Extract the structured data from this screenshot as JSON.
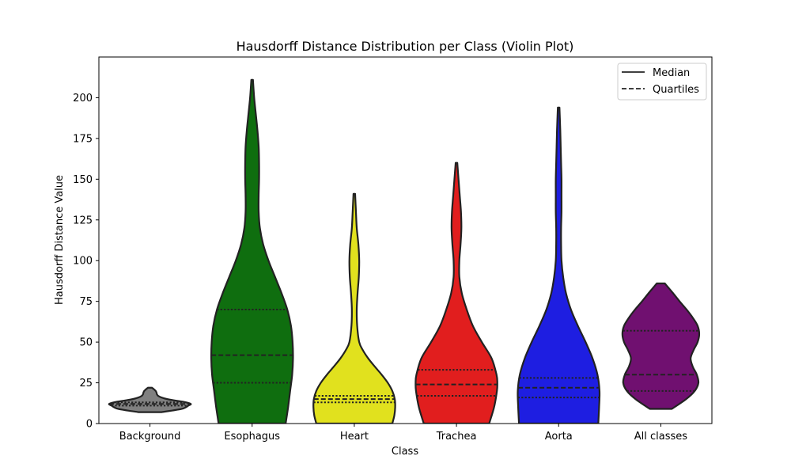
{
  "chart_data": {
    "type": "violin",
    "title": "Hausdorff Distance Distribution per Class (Violin Plot)",
    "xlabel": "Class",
    "ylabel": "Hausdorff Distance Value",
    "ylim": [
      0,
      225
    ],
    "yticks": [
      0,
      25,
      50,
      75,
      100,
      125,
      150,
      175,
      200
    ],
    "legend": {
      "placement": "top-right",
      "entries": [
        {
          "label": "Median",
          "style": "solid"
        },
        {
          "label": "Quartiles",
          "style": "dashed"
        }
      ]
    },
    "categories": [
      "Background",
      "Esophagus",
      "Heart",
      "Trachea",
      "Aorta",
      "All classes"
    ],
    "series": [
      {
        "category": "Background",
        "color": "#808080",
        "min": 7,
        "max": 22,
        "q1": 11,
        "median": 12,
        "q3": 13,
        "density": [
          [
            7,
            0.28
          ],
          [
            8,
            0.55
          ],
          [
            9,
            0.78
          ],
          [
            10,
            0.88
          ],
          [
            11,
            0.94
          ],
          [
            12,
            1.0
          ],
          [
            13,
            0.88
          ],
          [
            14,
            0.65
          ],
          [
            15,
            0.42
          ],
          [
            16,
            0.28
          ],
          [
            17,
            0.2
          ],
          [
            18,
            0.17
          ],
          [
            19,
            0.16
          ],
          [
            20,
            0.14
          ],
          [
            21,
            0.1
          ],
          [
            22,
            0.05
          ]
        ]
      },
      {
        "category": "Esophagus",
        "color": "#0f6e0f",
        "min": 0,
        "max": 211,
        "q1": 25,
        "median": 42,
        "q3": 70,
        "density": [
          [
            0,
            0.82
          ],
          [
            10,
            0.88
          ],
          [
            20,
            0.93
          ],
          [
            30,
            0.98
          ],
          [
            40,
            1.0
          ],
          [
            50,
            0.99
          ],
          [
            60,
            0.95
          ],
          [
            70,
            0.86
          ],
          [
            80,
            0.72
          ],
          [
            90,
            0.56
          ],
          [
            100,
            0.4
          ],
          [
            110,
            0.27
          ],
          [
            120,
            0.19
          ],
          [
            130,
            0.16
          ],
          [
            140,
            0.16
          ],
          [
            150,
            0.17
          ],
          [
            160,
            0.17
          ],
          [
            170,
            0.16
          ],
          [
            180,
            0.13
          ],
          [
            190,
            0.09
          ],
          [
            200,
            0.05
          ],
          [
            211,
            0.02
          ]
        ]
      },
      {
        "category": "Heart",
        "color": "#e1e11e",
        "min": 0,
        "max": 141,
        "q1": 13,
        "median": 15,
        "q3": 17,
        "density": [
          [
            0,
            0.93
          ],
          [
            5,
            0.98
          ],
          [
            10,
            1.0
          ],
          [
            15,
            0.99
          ],
          [
            20,
            0.93
          ],
          [
            25,
            0.82
          ],
          [
            30,
            0.67
          ],
          [
            35,
            0.5
          ],
          [
            40,
            0.34
          ],
          [
            45,
            0.21
          ],
          [
            50,
            0.12
          ],
          [
            60,
            0.07
          ],
          [
            70,
            0.06
          ],
          [
            80,
            0.08
          ],
          [
            90,
            0.11
          ],
          [
            100,
            0.12
          ],
          [
            110,
            0.1
          ],
          [
            120,
            0.06
          ],
          [
            130,
            0.04
          ],
          [
            141,
            0.02
          ]
        ]
      },
      {
        "category": "Trachea",
        "color": "#e11e1e",
        "min": 0,
        "max": 160,
        "q1": 17,
        "median": 24,
        "q3": 33,
        "density": [
          [
            0,
            0.8
          ],
          [
            10,
            0.92
          ],
          [
            20,
            0.99
          ],
          [
            25,
            1.0
          ],
          [
            30,
            0.98
          ],
          [
            40,
            0.86
          ],
          [
            50,
            0.62
          ],
          [
            60,
            0.4
          ],
          [
            70,
            0.25
          ],
          [
            80,
            0.13
          ],
          [
            90,
            0.07
          ],
          [
            100,
            0.07
          ],
          [
            110,
            0.1
          ],
          [
            120,
            0.12
          ],
          [
            130,
            0.11
          ],
          [
            140,
            0.08
          ],
          [
            150,
            0.05
          ],
          [
            160,
            0.02
          ]
        ]
      },
      {
        "category": "Aorta",
        "color": "#1e1ee1",
        "min": 0,
        "max": 194,
        "q1": 16,
        "median": 22,
        "q3": 28,
        "density": [
          [
            0,
            0.97
          ],
          [
            10,
            0.99
          ],
          [
            20,
            1.0
          ],
          [
            30,
            0.95
          ],
          [
            40,
            0.83
          ],
          [
            50,
            0.66
          ],
          [
            60,
            0.47
          ],
          [
            70,
            0.3
          ],
          [
            80,
            0.18
          ],
          [
            90,
            0.11
          ],
          [
            100,
            0.07
          ],
          [
            110,
            0.06
          ],
          [
            120,
            0.06
          ],
          [
            130,
            0.07
          ],
          [
            140,
            0.07
          ],
          [
            150,
            0.07
          ],
          [
            160,
            0.06
          ],
          [
            170,
            0.05
          ],
          [
            180,
            0.04
          ],
          [
            194,
            0.02
          ]
        ]
      },
      {
        "category": "All classes",
        "color": "#701070",
        "min": 9,
        "max": 86,
        "q1": 20,
        "median": 30,
        "q3": 57,
        "density": [
          [
            9,
            0.27
          ],
          [
            15,
            0.62
          ],
          [
            20,
            0.83
          ],
          [
            25,
            0.92
          ],
          [
            30,
            0.88
          ],
          [
            35,
            0.78
          ],
          [
            40,
            0.73
          ],
          [
            45,
            0.8
          ],
          [
            50,
            0.9
          ],
          [
            55,
            0.94
          ],
          [
            60,
            0.9
          ],
          [
            65,
            0.78
          ],
          [
            70,
            0.63
          ],
          [
            75,
            0.46
          ],
          [
            80,
            0.3
          ],
          [
            83,
            0.2
          ],
          [
            86,
            0.1
          ]
        ]
      }
    ]
  }
}
